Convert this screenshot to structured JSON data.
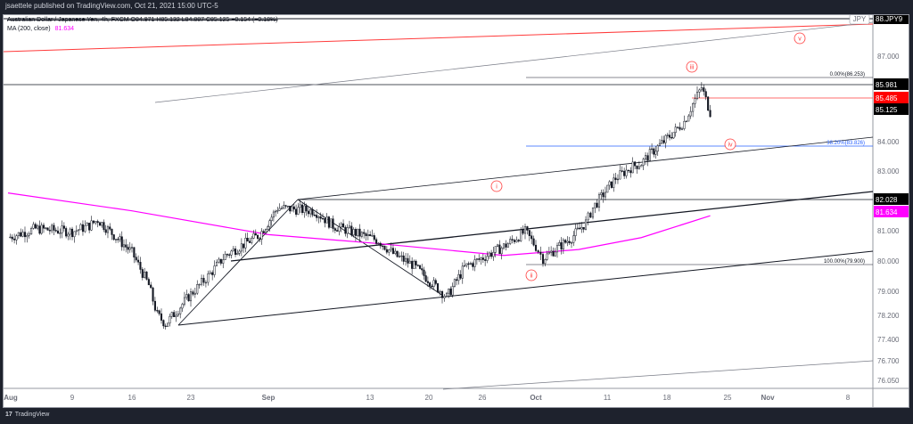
{
  "header": {
    "published": "jsaettele published on TradingView.com, Oct 21, 2021 15:00 UTC-5"
  },
  "legend": {
    "symbol": "Australian Dollar / Japanese Yen, 4h, FXCM  O84.971  H85.132  L84.887  C85.125  −0.154 (−0.18%)",
    "ma_label": "MA (200, close)",
    "ma_value": "81.634"
  },
  "footer": {
    "logo": "17",
    "brand": "TradingView"
  },
  "colors": {
    "price": "#131722",
    "ma": "#ff00ff",
    "red": "#ff3b3b",
    "fib": "#2962ff",
    "axis_bg": "#000000"
  },
  "chart_data": {
    "type": "candlestick",
    "title": "Australian Dollar / Japanese Yen, 4h",
    "y_ticks": [
      "87.000",
      "84.000",
      "83.000",
      "81.000",
      "80.000",
      "79.000",
      "78.200",
      "77.400",
      "76.700",
      "76.050"
    ],
    "x_ticks": [
      "Aug",
      "9",
      "16",
      "23",
      "Sep",
      "13",
      "20",
      "26",
      "Oct",
      "11",
      "18",
      "25",
      "Nov",
      "8"
    ],
    "price_labels": [
      {
        "text": "88.JPY9",
        "badge": "JPY"
      },
      {
        "text": "85.981"
      },
      {
        "text": "85.485"
      },
      {
        "text": "85.125"
      },
      {
        "text": "82.028"
      },
      {
        "text": "81.634"
      }
    ],
    "fib_labels": [
      "0.00%(86.253)",
      "38.20%(83.826)",
      "100.00%(79.900)"
    ],
    "wave_labels": [
      "i",
      "ii",
      "iii",
      "iv",
      "v"
    ],
    "closes": [
      [
        "Aug 2",
        80.9
      ],
      [
        "Aug 5",
        81.2
      ],
      [
        "Aug 9",
        81.1
      ],
      [
        "Aug 11",
        81.3
      ],
      [
        "Aug 12",
        81.5
      ],
      [
        "Aug 16",
        80.4
      ],
      [
        "Aug 18",
        79.3
      ],
      [
        "Aug 19",
        78.3
      ],
      [
        "Aug 20",
        78.0
      ],
      [
        "Aug 23",
        79.0
      ],
      [
        "Aug 25",
        79.6
      ],
      [
        "Aug 27",
        80.3
      ],
      [
        "Aug 31",
        81.0
      ],
      [
        "Sep 2",
        81.9
      ],
      [
        "Sep 6",
        81.8
      ],
      [
        "Sep 8",
        81.3
      ],
      [
        "Sep 10",
        81.1
      ],
      [
        "Sep 13",
        80.8
      ],
      [
        "Sep 15",
        80.3
      ],
      [
        "Sep 17",
        80.0
      ],
      [
        "Sep 20",
        79.2
      ],
      [
        "Sep 21",
        78.9
      ],
      [
        "Sep 23",
        79.9
      ],
      [
        "Sep 27",
        80.6
      ],
      [
        "Sep 29",
        81.1
      ],
      [
        "Sep 30",
        80.6
      ],
      [
        "Oct 1",
        80.2
      ],
      [
        "Oct 5",
        80.9
      ],
      [
        "Oct 7",
        81.4
      ],
      [
        "Oct 8",
        81.9
      ],
      [
        "Oct 11",
        82.9
      ],
      [
        "Oct 13",
        83.3
      ],
      [
        "Oct 14",
        83.4
      ],
      [
        "Oct 15",
        83.7
      ],
      [
        "Oct 18",
        84.5
      ],
      [
        "Oct 19",
        84.8
      ],
      [
        "Oct 20",
        85.4
      ],
      [
        "Oct 21",
        85.95
      ],
      [
        "Oct 22",
        85.12
      ]
    ],
    "ma200": [
      [
        "Aug 2",
        82.4
      ],
      [
        "Aug 16",
        81.8
      ],
      [
        "Sep 1",
        81.0
      ],
      [
        "Sep 13",
        80.7
      ],
      [
        "Sep 27",
        80.3
      ],
      [
        "Oct 6",
        80.5
      ],
      [
        "Oct 14",
        80.9
      ],
      [
        "Oct 22",
        81.634
      ]
    ]
  }
}
